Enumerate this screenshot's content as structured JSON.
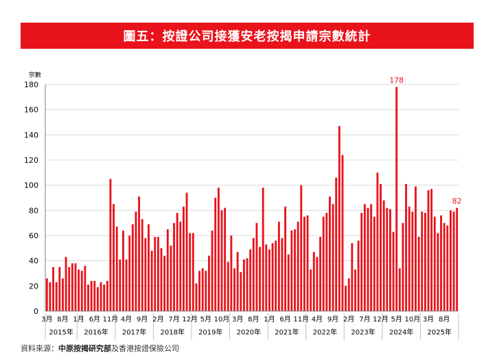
{
  "title": "圖五：按證公司接獲安老按揭申請宗數統計",
  "source": {
    "prefix": "資料來源：",
    "bold": "中原按揭研究部",
    "rest": "及香港按證保險公司"
  },
  "colors": {
    "title_bg": "#e8131b",
    "bar": "#e8131b",
    "annotation": "#e8131b"
  },
  "chart_data": {
    "type": "bar",
    "ylabel": "宗數",
    "ylim": [
      0,
      180
    ],
    "yticks": [
      0,
      20,
      40,
      60,
      80,
      100,
      120,
      140,
      160,
      180
    ],
    "start": "2015-03",
    "values": [
      26,
      23,
      35,
      23,
      35,
      26,
      43,
      35,
      38,
      38,
      33,
      32,
      36,
      21,
      24,
      24,
      19,
      23,
      21,
      24,
      105,
      85,
      67,
      41,
      64,
      41,
      60,
      69,
      79,
      91,
      73,
      58,
      69,
      48,
      59,
      59,
      50,
      44,
      65,
      52,
      70,
      78,
      71,
      83,
      94,
      62,
      62,
      22,
      32,
      34,
      32,
      44,
      64,
      90,
      98,
      80,
      82,
      39,
      60,
      34,
      47,
      31,
      41,
      42,
      49,
      58,
      70,
      51,
      98,
      53,
      49,
      54,
      56,
      71,
      58,
      83,
      45,
      64,
      65,
      71,
      100,
      75,
      76,
      33,
      47,
      43,
      59,
      75,
      78,
      91,
      85,
      106,
      147,
      124,
      20,
      26,
      54,
      33,
      56,
      78,
      85,
      82,
      85,
      75,
      110,
      101,
      88,
      82,
      81,
      63,
      178,
      34,
      70,
      101,
      83,
      79,
      99,
      59,
      79,
      78,
      96,
      97,
      75,
      62,
      76,
      70,
      68,
      80,
      79,
      82
    ],
    "month_ticks": [
      {
        "i": 0,
        "label": "3月"
      },
      {
        "i": 5,
        "label": "8月"
      },
      {
        "i": 10,
        "label": "1月"
      },
      {
        "i": 15,
        "label": "6月"
      },
      {
        "i": 20,
        "label": "11月"
      },
      {
        "i": 25,
        "label": "4月"
      },
      {
        "i": 30,
        "label": "9月"
      },
      {
        "i": 35,
        "label": "2月"
      },
      {
        "i": 40,
        "label": "7月"
      },
      {
        "i": 45,
        "label": "12月"
      },
      {
        "i": 50,
        "label": "5月"
      },
      {
        "i": 55,
        "label": "10月"
      },
      {
        "i": 60,
        "label": "3月"
      },
      {
        "i": 65,
        "label": "8月"
      },
      {
        "i": 70,
        "label": "1月"
      },
      {
        "i": 75,
        "label": "6月"
      },
      {
        "i": 80,
        "label": "11月"
      },
      {
        "i": 85,
        "label": "4月"
      },
      {
        "i": 90,
        "label": "9月"
      },
      {
        "i": 95,
        "label": "2月"
      },
      {
        "i": 100,
        "label": "7月"
      },
      {
        "i": 105,
        "label": "12月"
      },
      {
        "i": 110,
        "label": "5月"
      },
      {
        "i": 115,
        "label": "10月"
      },
      {
        "i": 120,
        "label": "3月"
      },
      {
        "i": 125,
        "label": "8月"
      }
    ],
    "year_groups": [
      {
        "label": "2015年",
        "start": 0,
        "end": 9
      },
      {
        "label": "2016年",
        "start": 10,
        "end": 21
      },
      {
        "label": "2017年",
        "start": 22,
        "end": 33
      },
      {
        "label": "2018年",
        "start": 34,
        "end": 45
      },
      {
        "label": "2019年",
        "start": 46,
        "end": 57
      },
      {
        "label": "2020年",
        "start": 58,
        "end": 69
      },
      {
        "label": "2021年",
        "start": 70,
        "end": 81
      },
      {
        "label": "2022年",
        "start": 82,
        "end": 93
      },
      {
        "label": "2023年",
        "start": 94,
        "end": 105
      },
      {
        "label": "2024年",
        "start": 106,
        "end": 117
      },
      {
        "label": "2025年",
        "start": 118,
        "end": 129
      }
    ],
    "annotations": [
      {
        "i": 110,
        "label": "178"
      },
      {
        "i": 129,
        "label": "82"
      }
    ]
  }
}
